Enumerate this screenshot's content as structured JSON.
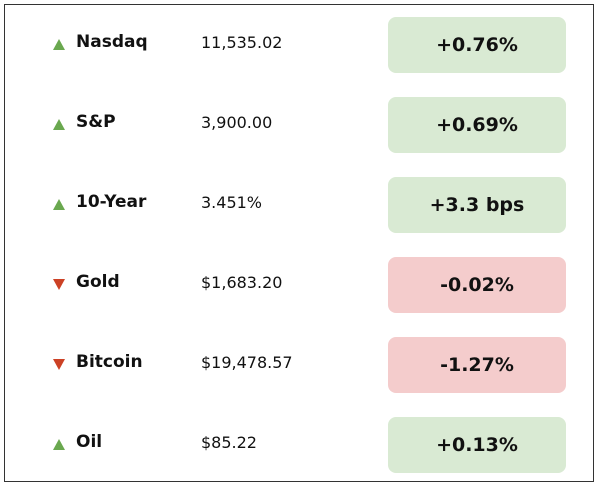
{
  "table": {
    "rows": [
      {
        "name": "Nasdaq",
        "price": "11,535.02",
        "change": "+0.76%",
        "direction": "up"
      },
      {
        "name": "S&P",
        "price": "3,900.00",
        "change": "+0.69%",
        "direction": "up"
      },
      {
        "name": "10-Year",
        "price": "3.451%",
        "change": "+3.3 bps",
        "direction": "up"
      },
      {
        "name": "Gold",
        "price": "$1,683.20",
        "change": "-0.02%",
        "direction": "down"
      },
      {
        "name": "Bitcoin",
        "price": "$19,478.57",
        "change": "-1.27%",
        "direction": "down"
      },
      {
        "name": "Oil",
        "price": "$85.22",
        "change": "+0.13%",
        "direction": "up"
      }
    ]
  }
}
